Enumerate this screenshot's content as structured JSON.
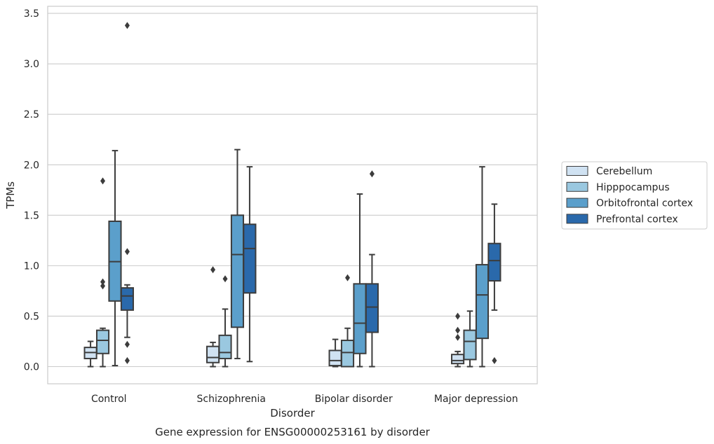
{
  "chart_data": {
    "type": "box",
    "caption": "Gene expression for ENSG00000253161 by disorder",
    "xlabel": "Disorder",
    "ylabel": "TPMs",
    "ylim": [
      -0.17,
      3.57
    ],
    "yticks": [
      "0.0",
      "0.5",
      "1.0",
      "1.5",
      "2.0",
      "2.5",
      "3.0",
      "3.5"
    ],
    "grid": "horizontal",
    "legend_position": "right",
    "categories": [
      "Control",
      "Schizophrenia",
      "Bipolar disorder",
      "Major depression"
    ],
    "series": [
      {
        "name": "Cerebellum",
        "color": "#d0e2f2",
        "boxes": [
          {
            "whislo": 0.0,
            "q1": 0.08,
            "med": 0.14,
            "q3": 0.19,
            "whishi": 0.25,
            "fliers": []
          },
          {
            "whislo": 0.0,
            "q1": 0.04,
            "med": 0.09,
            "q3": 0.2,
            "whishi": 0.24,
            "fliers": [
              0.96
            ]
          },
          {
            "whislo": 0.0,
            "q1": 0.01,
            "med": 0.06,
            "q3": 0.16,
            "whishi": 0.27,
            "fliers": []
          },
          {
            "whislo": 0.0,
            "q1": 0.03,
            "med": 0.06,
            "q3": 0.12,
            "whishi": 0.15,
            "fliers": [
              0.29,
              0.36,
              0.5
            ]
          }
        ]
      },
      {
        "name": "Hipppocampus",
        "color": "#9ac8e0",
        "boxes": [
          {
            "whislo": 0.0,
            "q1": 0.13,
            "med": 0.26,
            "q3": 0.36,
            "whishi": 0.38,
            "fliers": [
              0.8,
              0.84,
              1.84
            ]
          },
          {
            "whislo": 0.0,
            "q1": 0.08,
            "med": 0.14,
            "q3": 0.31,
            "whishi": 0.57,
            "fliers": [
              0.87
            ]
          },
          {
            "whislo": 0.0,
            "q1": 0.0,
            "med": 0.14,
            "q3": 0.26,
            "whishi": 0.38,
            "fliers": [
              0.88
            ]
          },
          {
            "whislo": 0.0,
            "q1": 0.07,
            "med": 0.25,
            "q3": 0.36,
            "whishi": 0.55,
            "fliers": []
          }
        ]
      },
      {
        "name": "Orbitofrontal cortex",
        "color": "#5b9fcb",
        "boxes": [
          {
            "whislo": 0.01,
            "q1": 0.65,
            "med": 1.04,
            "q3": 1.44,
            "whishi": 2.14,
            "fliers": []
          },
          {
            "whislo": 0.08,
            "q1": 0.39,
            "med": 1.11,
            "q3": 1.5,
            "whishi": 2.15,
            "fliers": []
          },
          {
            "whislo": 0.0,
            "q1": 0.13,
            "med": 0.43,
            "q3": 0.82,
            "whishi": 1.71,
            "fliers": []
          },
          {
            "whislo": 0.0,
            "q1": 0.28,
            "med": 0.71,
            "q3": 1.01,
            "whishi": 1.98,
            "fliers": []
          }
        ]
      },
      {
        "name": "Prefrontal cortex",
        "color": "#2a69ab",
        "boxes": [
          {
            "whislo": 0.29,
            "q1": 0.56,
            "med": 0.7,
            "q3": 0.78,
            "whishi": 0.81,
            "fliers": [
              0.06,
              0.22,
              1.14,
              3.38
            ]
          },
          {
            "whislo": 0.05,
            "q1": 0.73,
            "med": 1.17,
            "q3": 1.41,
            "whishi": 1.98,
            "fliers": []
          },
          {
            "whislo": 0.0,
            "q1": 0.34,
            "med": 0.59,
            "q3": 0.82,
            "whishi": 1.11,
            "fliers": [
              1.91
            ]
          },
          {
            "whislo": 0.56,
            "q1": 0.85,
            "med": 1.05,
            "q3": 1.22,
            "whishi": 1.61,
            "fliers": [
              0.06
            ]
          }
        ]
      }
    ]
  }
}
